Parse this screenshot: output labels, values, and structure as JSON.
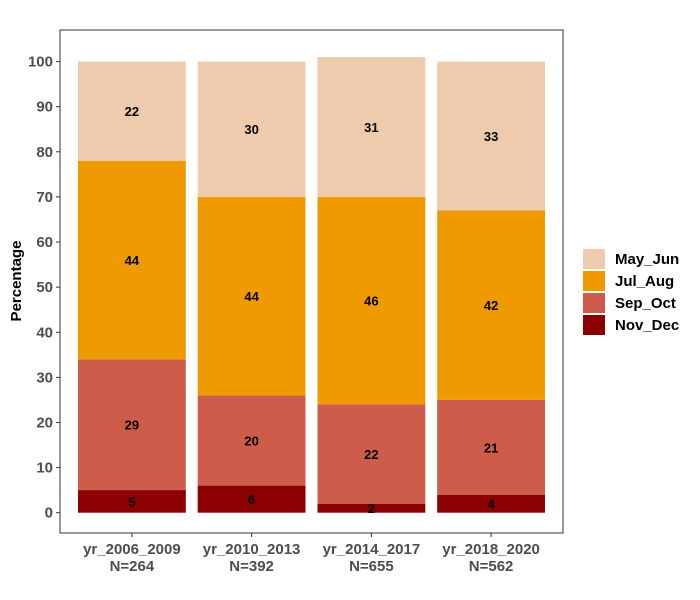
{
  "chart_data": {
    "type": "bar",
    "stacked": true,
    "categories": [
      "yr_2006_2009",
      "yr_2010_2013",
      "yr_2014_2017",
      "yr_2018_2020"
    ],
    "category_n": [
      "N=264",
      "N=392",
      "N=655",
      "N=562"
    ],
    "series": [
      {
        "name": "Nov_Dec",
        "values": [
          5,
          6,
          2,
          4
        ],
        "color": "#8b0000"
      },
      {
        "name": "Sep_Oct",
        "values": [
          29,
          20,
          22,
          21
        ],
        "color": "#cd5c4a"
      },
      {
        "name": "Jul_Aug",
        "values": [
          44,
          44,
          46,
          42
        ],
        "color": "#ee9a00"
      },
      {
        "name": "May_Jun",
        "values": [
          22,
          30,
          31,
          33
        ],
        "color": "#eecbad"
      }
    ],
    "legend_order": [
      "May_Jun",
      "Jul_Aug",
      "Sep_Oct",
      "Nov_Dec"
    ],
    "ylabel": "Percentage",
    "xlabel": "",
    "ylim": [
      -4.5,
      107
    ],
    "yticks": [
      0,
      10,
      20,
      30,
      40,
      50,
      60,
      70,
      80,
      90,
      100
    ],
    "grid": false,
    "legend_position": "right"
  }
}
